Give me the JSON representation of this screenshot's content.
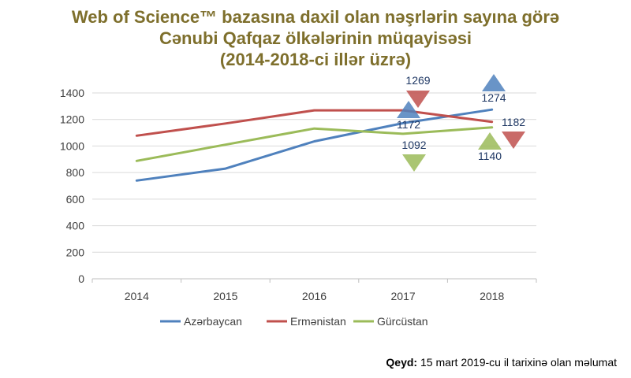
{
  "chart_data": {
    "type": "line",
    "title": [
      "Web of Science™ bazasına daxil olan nəşrlərin sayına görə",
      "Cənubi Qafqaz ölkələrinin müqayisəsi",
      "(2014-2018-ci illər üzrə)"
    ],
    "x": [
      "2014",
      "2015",
      "2016",
      "2017",
      "2018"
    ],
    "ylim": [
      0,
      1400
    ],
    "yticks": [
      "0",
      "200",
      "400",
      "600",
      "800",
      "1000",
      "1200",
      "1400"
    ],
    "grid": true,
    "legend": "bottom",
    "series": [
      {
        "name": "Azərbaycan",
        "color": "#4f81bd",
        "values": [
          740,
          830,
          1035,
          1172,
          1274
        ]
      },
      {
        "name": "Ermənistan",
        "color": "#c0504d",
        "values": [
          1078,
          1170,
          1269,
          1269,
          1182
        ]
      },
      {
        "name": "Gürcüstan",
        "color": "#9bbb59",
        "values": [
          888,
          1010,
          1132,
          1092,
          1140
        ]
      }
    ],
    "annotations": [
      {
        "label": "1269",
        "series": 1,
        "year": "2017",
        "direction": "down"
      },
      {
        "label": "1172",
        "series": 0,
        "year": "2017",
        "direction": "up"
      },
      {
        "label": "1092",
        "series": 2,
        "year": "2017",
        "direction": "down"
      },
      {
        "label": "1274",
        "series": 0,
        "year": "2018",
        "direction": "up"
      },
      {
        "label": "1182",
        "series": 1,
        "year": "2018",
        "direction": "down"
      },
      {
        "label": "1140",
        "series": 2,
        "year": "2018",
        "direction": "up"
      }
    ]
  },
  "note": {
    "label": "Qeyd:",
    "text": " 15 mart 2019-cu il tarixinə olan məlumat"
  }
}
